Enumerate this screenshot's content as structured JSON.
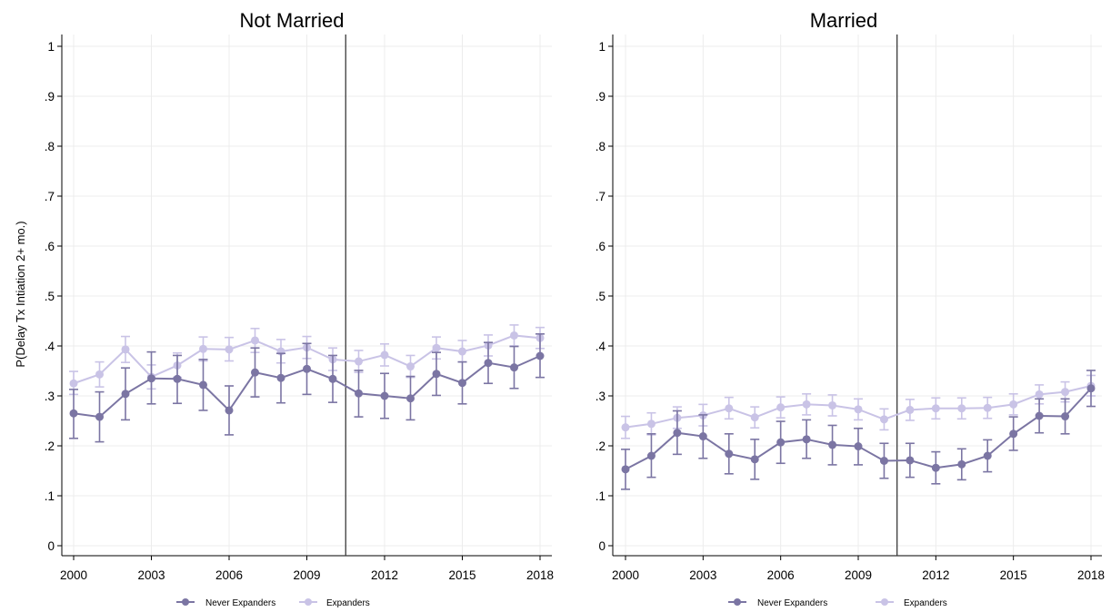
{
  "colors": {
    "never_expanders": "#7b75a3",
    "expanders": "#c9c3e6",
    "axis": "#000000",
    "grid": "#ececec",
    "policy_line": "#3a3a3a"
  },
  "shared": {
    "ylabel": "P(Delay Tx Intiation 2+ mo.)",
    "x_ticks": [
      "2000",
      "2003",
      "2006",
      "2009",
      "2012",
      "2015",
      "2018"
    ],
    "y_ticks": [
      "0",
      ".1",
      ".2",
      ".3",
      ".4",
      ".5",
      ".6",
      ".7",
      ".8",
      ".9",
      "1"
    ],
    "legend": {
      "never_expanders": "Never Expanders",
      "expanders": "Expanders"
    }
  },
  "chart_data": [
    {
      "type": "line",
      "title": "Not Married",
      "xlabel": "",
      "ylabel": "P(Delay Tx Intiation 2+ mo.)",
      "xlim": [
        2000,
        2018
      ],
      "ylim": [
        0,
        1
      ],
      "grid": true,
      "legend_position": "bottom",
      "vline_x": 2010.5,
      "x": [
        2000,
        2001,
        2002,
        2003,
        2004,
        2005,
        2006,
        2007,
        2008,
        2009,
        2010,
        2011,
        2012,
        2013,
        2014,
        2015,
        2016,
        2017,
        2018
      ],
      "series": [
        {
          "name": "Never Expanders",
          "values": [
            0.265,
            0.258,
            0.304,
            0.335,
            0.334,
            0.322,
            0.271,
            0.347,
            0.336,
            0.354,
            0.334,
            0.305,
            0.3,
            0.295,
            0.344,
            0.326,
            0.366,
            0.357,
            0.38
          ],
          "ci_low": [
            0.215,
            0.208,
            0.252,
            0.284,
            0.285,
            0.271,
            0.222,
            0.298,
            0.286,
            0.303,
            0.287,
            0.258,
            0.255,
            0.252,
            0.301,
            0.284,
            0.325,
            0.315,
            0.337
          ],
          "ci_high": [
            0.313,
            0.308,
            0.356,
            0.388,
            0.381,
            0.373,
            0.32,
            0.396,
            0.385,
            0.405,
            0.381,
            0.351,
            0.345,
            0.339,
            0.387,
            0.368,
            0.407,
            0.399,
            0.424
          ]
        },
        {
          "name": "Expanders",
          "values": [
            0.325,
            0.343,
            0.393,
            0.338,
            0.361,
            0.394,
            0.393,
            0.411,
            0.389,
            0.397,
            0.373,
            0.369,
            0.382,
            0.359,
            0.396,
            0.389,
            0.401,
            0.421,
            0.416
          ],
          "ci_low": [
            0.303,
            0.318,
            0.367,
            0.314,
            0.337,
            0.37,
            0.37,
            0.387,
            0.366,
            0.375,
            0.351,
            0.347,
            0.36,
            0.337,
            0.374,
            0.368,
            0.38,
            0.4,
            0.395
          ],
          "ci_high": [
            0.349,
            0.368,
            0.419,
            0.362,
            0.386,
            0.418,
            0.417,
            0.435,
            0.413,
            0.419,
            0.396,
            0.391,
            0.404,
            0.381,
            0.418,
            0.411,
            0.422,
            0.442,
            0.437
          ]
        }
      ]
    },
    {
      "type": "line",
      "title": "Married",
      "xlabel": "",
      "ylabel": "",
      "xlim": [
        2000,
        2018
      ],
      "ylim": [
        0,
        1
      ],
      "grid": true,
      "legend_position": "bottom",
      "vline_x": 2010.5,
      "x": [
        2000,
        2001,
        2002,
        2003,
        2004,
        2005,
        2006,
        2007,
        2008,
        2009,
        2010,
        2011,
        2012,
        2013,
        2014,
        2015,
        2016,
        2017,
        2018
      ],
      "series": [
        {
          "name": "Never Expanders",
          "values": [
            0.153,
            0.18,
            0.226,
            0.219,
            0.184,
            0.173,
            0.207,
            0.213,
            0.202,
            0.199,
            0.17,
            0.171,
            0.156,
            0.163,
            0.18,
            0.224,
            0.26,
            0.259,
            0.315
          ],
          "ci_low": [
            0.113,
            0.137,
            0.183,
            0.175,
            0.144,
            0.133,
            0.165,
            0.175,
            0.162,
            0.162,
            0.135,
            0.137,
            0.124,
            0.132,
            0.148,
            0.191,
            0.226,
            0.224,
            0.279
          ],
          "ci_high": [
            0.193,
            0.224,
            0.27,
            0.262,
            0.224,
            0.213,
            0.249,
            0.252,
            0.241,
            0.235,
            0.205,
            0.205,
            0.188,
            0.194,
            0.212,
            0.258,
            0.294,
            0.294,
            0.351
          ]
        },
        {
          "name": "Expanders",
          "values": [
            0.237,
            0.244,
            0.256,
            0.261,
            0.275,
            0.257,
            0.277,
            0.283,
            0.281,
            0.273,
            0.253,
            0.272,
            0.275,
            0.275,
            0.276,
            0.283,
            0.303,
            0.308,
            0.32
          ],
          "ci_low": [
            0.215,
            0.222,
            0.235,
            0.24,
            0.254,
            0.236,
            0.256,
            0.262,
            0.26,
            0.252,
            0.232,
            0.251,
            0.254,
            0.254,
            0.255,
            0.262,
            0.284,
            0.288,
            0.3
          ],
          "ci_high": [
            0.259,
            0.266,
            0.278,
            0.283,
            0.297,
            0.278,
            0.298,
            0.304,
            0.302,
            0.294,
            0.274,
            0.293,
            0.296,
            0.296,
            0.297,
            0.304,
            0.322,
            0.328,
            0.341
          ]
        }
      ]
    }
  ]
}
